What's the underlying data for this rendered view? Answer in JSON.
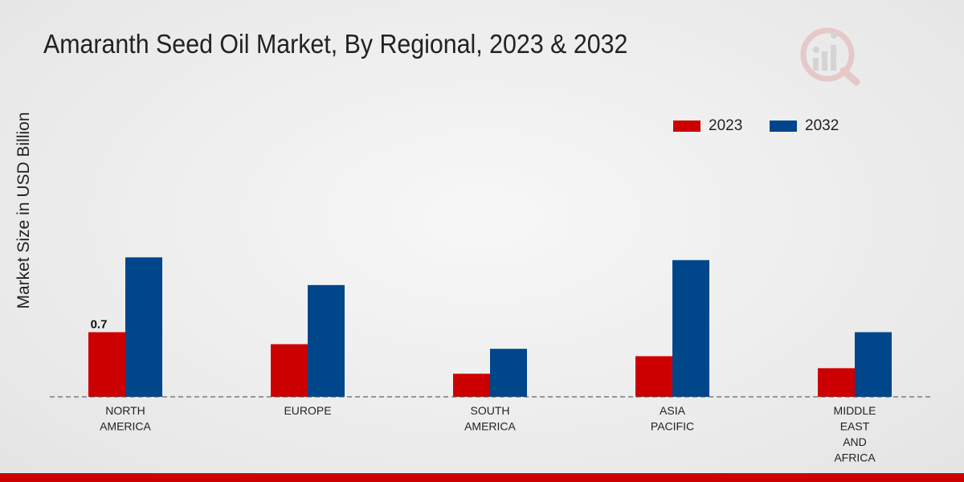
{
  "header": {
    "title": "Amaranth Seed Oil Market, By Regional, 2023 & 2032"
  },
  "colors": {
    "series_2023": "#cc0000",
    "series_2032": "#00468b",
    "footer_bar": "#cc0000"
  },
  "chart_data": {
    "type": "bar",
    "title": "Amaranth Seed Oil Market, By Regional, 2023 & 2032",
    "xlabel": "",
    "ylabel": "Market Size in USD Billion",
    "categories": [
      [
        "NORTH",
        "AMERICA"
      ],
      [
        "EUROPE"
      ],
      [
        "SOUTH",
        "AMERICA"
      ],
      [
        "ASIA",
        "PACIFIC"
      ],
      [
        "MIDDLE",
        "EAST",
        "AND",
        "AFRICA"
      ]
    ],
    "series": [
      {
        "name": "2023",
        "color": "#cc0000",
        "values": [
          0.7,
          0.57,
          0.25,
          0.44,
          0.31
        ]
      },
      {
        "name": "2032",
        "color": "#00468b",
        "values": [
          1.51,
          1.21,
          0.52,
          1.48,
          0.7
        ]
      }
    ],
    "data_labels": [
      {
        "series": 0,
        "category": 0,
        "text": "0.7"
      }
    ],
    "ylim": [
      0,
      3.5
    ],
    "grid": false,
    "legend_position": "top-right"
  }
}
